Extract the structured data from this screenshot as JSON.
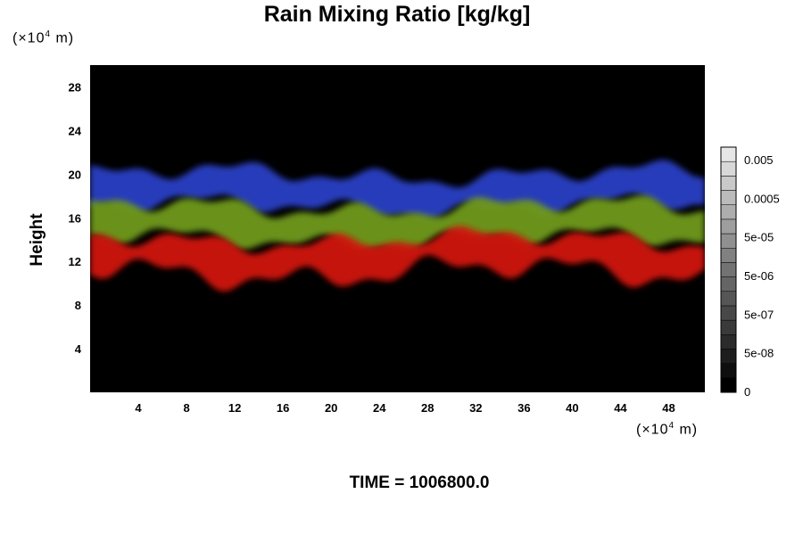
{
  "chart_data": {
    "type": "heatmap",
    "title": "Rain Mixing Ratio [kg/kg]",
    "ylabel": "Height",
    "y_unit": "10^4 m",
    "x_unit": "10^4 m",
    "footer": "TIME = 1006800.0",
    "xlim": [
      0,
      51
    ],
    "ylim": [
      0,
      30
    ],
    "x_ticks": [
      4,
      8,
      12,
      16,
      20,
      24,
      28,
      32,
      36,
      40,
      44,
      48
    ],
    "y_ticks": [
      4,
      8,
      12,
      16,
      20,
      24,
      28
    ],
    "colorbar": {
      "ticks": [
        "0.005",
        "0.0005",
        "5e-05",
        "5e-06",
        "5e-07",
        "5e-08",
        "0"
      ],
      "levels": 17
    },
    "layers": [
      {
        "name": "upper",
        "color": "#2a3fc4",
        "y_range": [
          17,
          20
        ]
      },
      {
        "name": "middle",
        "color": "#6f9a1c",
        "y_range": [
          14,
          17
        ]
      },
      {
        "name": "lower",
        "color": "#d0140c",
        "y_range": [
          11,
          14
        ]
      }
    ]
  },
  "units": {
    "prefix": "(×10",
    "exp": "4",
    "suffix": " m)"
  }
}
